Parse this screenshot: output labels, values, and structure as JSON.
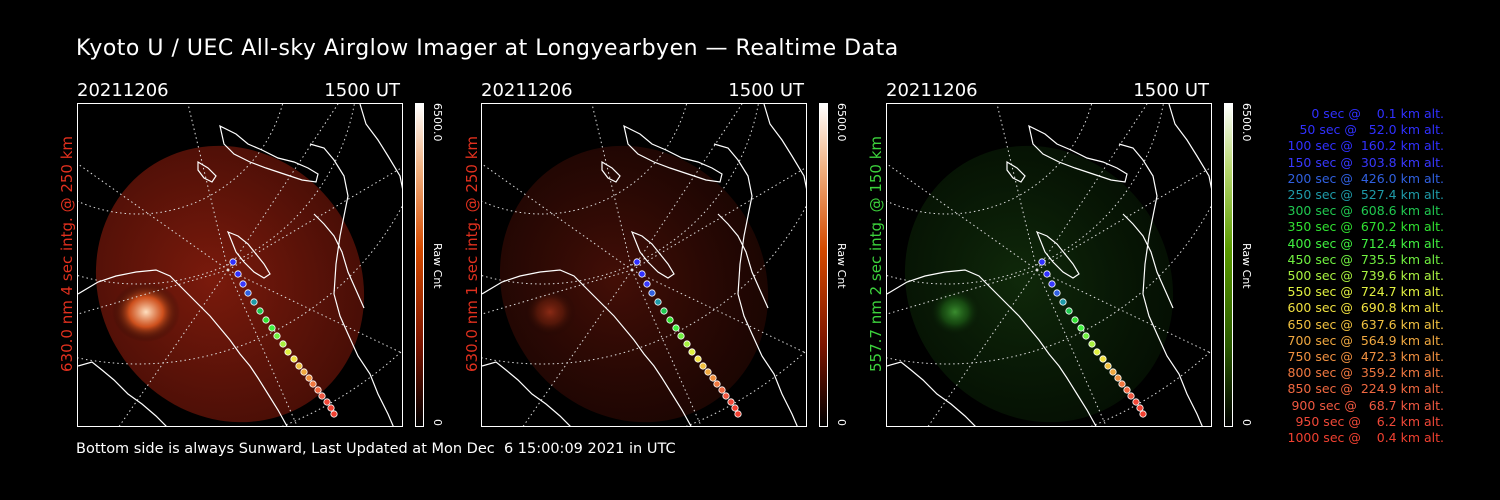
{
  "title": "Kyoto U / UEC All-sky Airglow Imager at Longyearbyen — Realtime Data",
  "panels": [
    {
      "date": "20211206",
      "time": "1500 UT",
      "label": "630.0 nm 4 sec intg. @ 250 km",
      "label_color": "#e0301e",
      "cbar_max": "6500.0",
      "cbar_unit": "Raw Cnt",
      "cbar_min": "0",
      "tint": "red",
      "brightness": "bright"
    },
    {
      "date": "20211206",
      "time": "1500 UT",
      "label": "630.0 nm 1 sec intg. @ 250 km",
      "label_color": "#e0301e",
      "cbar_max": "6500.0",
      "cbar_unit": "Raw Cnt",
      "cbar_min": "0",
      "tint": "red",
      "brightness": "dim"
    },
    {
      "date": "20211206",
      "time": "1500 UT",
      "label": "557.7 nm 2 sec intg. @ 150 km",
      "label_color": "#3cd23c",
      "cbar_max": "6500.0",
      "cbar_unit": "Raw Cnt",
      "cbar_min": "0",
      "tint": "green",
      "brightness": "dim"
    }
  ],
  "legend": [
    {
      "text": "0 sec @    0.1 km alt.",
      "color": "#3030ff"
    },
    {
      "text": "50 sec @   52.0 km alt.",
      "color": "#3030ff"
    },
    {
      "text": "100 sec @  160.2 km alt.",
      "color": "#3030ff"
    },
    {
      "text": "150 sec @  303.8 km alt.",
      "color": "#3838ff"
    },
    {
      "text": "200 sec @  426.0 km alt.",
      "color": "#3060e0"
    },
    {
      "text": "250 sec @  527.4 km alt.",
      "color": "#1e9aa8"
    },
    {
      "text": "300 sec @  608.6 km alt.",
      "color": "#20c850"
    },
    {
      "text": "350 sec @  670.2 km alt.",
      "color": "#30e030"
    },
    {
      "text": "400 sec @  712.4 km alt.",
      "color": "#40f040"
    },
    {
      "text": "450 sec @  735.5 km alt.",
      "color": "#70f040"
    },
    {
      "text": "500 sec @  739.6 km alt.",
      "color": "#a8f040"
    },
    {
      "text": "550 sec @  724.7 km alt.",
      "color": "#e0f040"
    },
    {
      "text": "600 sec @  690.8 km alt.",
      "color": "#f0e040"
    },
    {
      "text": "650 sec @  637.6 km alt.",
      "color": "#f0c040"
    },
    {
      "text": "700 sec @  564.9 km alt.",
      "color": "#f0a840"
    },
    {
      "text": "750 sec @  472.3 km alt.",
      "color": "#f09040"
    },
    {
      "text": "800 sec @  359.2 km alt.",
      "color": "#f07840"
    },
    {
      "text": "850 sec @  224.9 km alt.",
      "color": "#f06840"
    },
    {
      "text": "900 sec @   68.7 km alt.",
      "color": "#f05840"
    },
    {
      "text": "950 sec @    6.2 km alt.",
      "color": "#f04838"
    },
    {
      "text": "1000 sec @    0.4 km alt.",
      "color": "#f04030"
    }
  ],
  "footer": "Bottom side is always Sunward, Last Updated at Mon Dec  6 15:00:09 2021 in UTC"
}
